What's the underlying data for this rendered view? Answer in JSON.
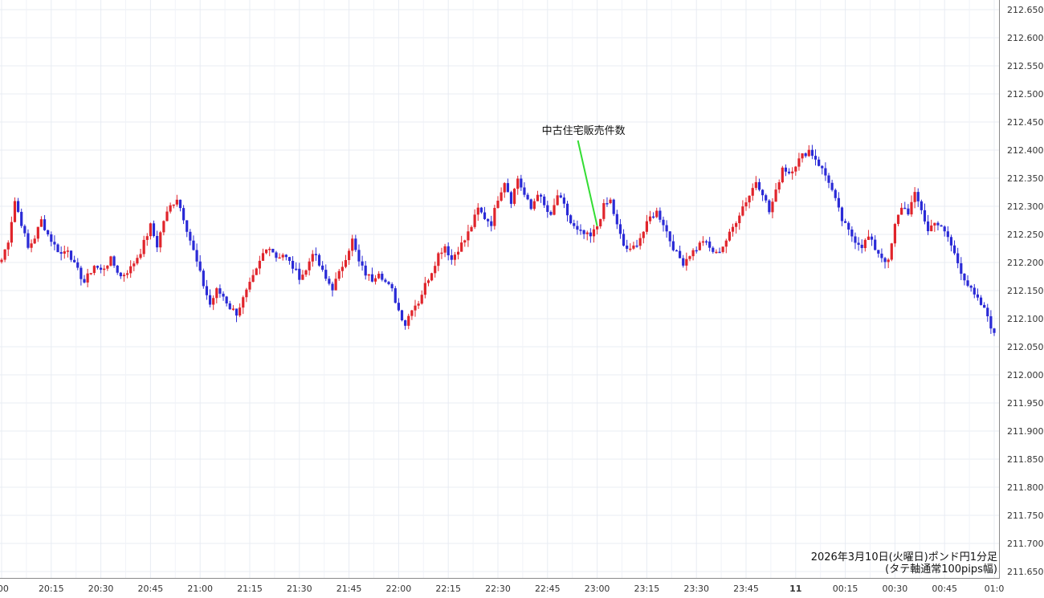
{
  "chart_data": {
    "type": "candlestick",
    "title": "2026年3月10日(火曜日)ポンド円1分足",
    "subtitle": "(タテ軸通常100pips幅)",
    "y_range": [
      211.63,
      212.67
    ],
    "y_ticks": [
      "212.650",
      "212.600",
      "212.550",
      "212.500",
      "212.450",
      "212.400",
      "212.350",
      "212.300",
      "212.250",
      "212.200",
      "212.150",
      "212.100",
      "212.050",
      "212.000",
      "211.950",
      "211.900",
      "211.850",
      "211.800",
      "211.750",
      "211.700",
      "211.650"
    ],
    "x_ticks": [
      ":00",
      "20:15",
      "20:30",
      "20:45",
      "21:00",
      "21:15",
      "21:30",
      "21:45",
      "22:00",
      "22:15",
      "22:30",
      "22:45",
      "23:00",
      "23:15",
      "23:30",
      "23:45",
      "11",
      "00:15",
      "00:30",
      "00:45",
      "01:0"
    ],
    "x_range_minutes": [
      "20:00",
      "01:01"
    ],
    "grid": true,
    "up_color": "#e0242b",
    "down_color": "#2a2ad6",
    "annotation": {
      "text": "中古住宅販売件数",
      "time": "23:00",
      "price": 212.265,
      "line_color": "#33dd33"
    },
    "close_path": [
      [
        "20:00",
        212.205
      ],
      [
        "20:02",
        212.24
      ],
      [
        "20:04",
        212.31
      ],
      [
        "20:06",
        212.27
      ],
      [
        "20:08",
        212.225
      ],
      [
        "20:10",
        212.245
      ],
      [
        "20:12",
        212.275
      ],
      [
        "20:14",
        212.25
      ],
      [
        "20:16",
        212.23
      ],
      [
        "20:18",
        212.215
      ],
      [
        "20:20",
        212.225
      ],
      [
        "20:22",
        212.195
      ],
      [
        "20:25",
        212.165
      ],
      [
        "20:28",
        212.195
      ],
      [
        "20:30",
        212.185
      ],
      [
        "20:33",
        212.205
      ],
      [
        "20:36",
        212.175
      ],
      [
        "20:39",
        212.19
      ],
      [
        "20:42",
        212.22
      ],
      [
        "20:45",
        212.265
      ],
      [
        "20:47",
        212.23
      ],
      [
        "20:49",
        212.275
      ],
      [
        "20:51",
        212.3
      ],
      [
        "20:53",
        212.315
      ],
      [
        "20:55",
        212.28
      ],
      [
        "20:57",
        212.24
      ],
      [
        "20:59",
        212.2
      ],
      [
        "21:01",
        212.16
      ],
      [
        "21:03",
        212.125
      ],
      [
        "21:05",
        212.15
      ],
      [
        "21:07",
        212.14
      ],
      [
        "21:09",
        212.12
      ],
      [
        "21:11",
        212.11
      ],
      [
        "21:13",
        212.135
      ],
      [
        "21:15",
        212.16
      ],
      [
        "21:17",
        212.185
      ],
      [
        "21:19",
        212.215
      ],
      [
        "21:21",
        212.23
      ],
      [
        "21:23",
        212.21
      ],
      [
        "21:25",
        212.215
      ],
      [
        "21:27",
        212.2
      ],
      [
        "21:30",
        212.175
      ],
      [
        "21:32",
        212.185
      ],
      [
        "21:34",
        212.22
      ],
      [
        "21:36",
        212.195
      ],
      [
        "21:38",
        212.17
      ],
      [
        "21:40",
        212.155
      ],
      [
        "21:42",
        212.18
      ],
      [
        "21:44",
        212.21
      ],
      [
        "21:46",
        212.24
      ],
      [
        "21:48",
        212.2
      ],
      [
        "21:50",
        212.18
      ],
      [
        "21:52",
        212.17
      ],
      [
        "21:54",
        212.185
      ],
      [
        "21:56",
        212.165
      ],
      [
        "21:58",
        212.15
      ],
      [
        "22:00",
        212.115
      ],
      [
        "22:02",
        212.09
      ],
      [
        "22:04",
        212.12
      ],
      [
        "22:06",
        212.13
      ],
      [
        "22:08",
        212.16
      ],
      [
        "22:10",
        212.185
      ],
      [
        "22:12",
        212.215
      ],
      [
        "22:14",
        212.23
      ],
      [
        "22:16",
        212.205
      ],
      [
        "22:18",
        212.225
      ],
      [
        "22:20",
        212.24
      ],
      [
        "22:22",
        212.265
      ],
      [
        "22:24",
        212.295
      ],
      [
        "22:26",
        212.28
      ],
      [
        "22:28",
        212.27
      ],
      [
        "22:30",
        212.315
      ],
      [
        "22:32",
        212.345
      ],
      [
        "22:34",
        212.31
      ],
      [
        "22:36",
        212.35
      ],
      [
        "22:38",
        212.32
      ],
      [
        "22:40",
        212.295
      ],
      [
        "22:42",
        212.325
      ],
      [
        "22:44",
        212.3
      ],
      [
        "22:46",
        212.28
      ],
      [
        "22:48",
        212.32
      ],
      [
        "22:50",
        212.3
      ],
      [
        "22:52",
        212.27
      ],
      [
        "22:54",
        212.255
      ],
      [
        "22:56",
        212.25
      ],
      [
        "22:58",
        212.245
      ],
      [
        "23:00",
        212.265
      ],
      [
        "23:02",
        212.3
      ],
      [
        "23:04",
        212.31
      ],
      [
        "23:06",
        212.265
      ],
      [
        "23:08",
        212.23
      ],
      [
        "23:10",
        212.22
      ],
      [
        "23:12",
        212.235
      ],
      [
        "23:14",
        212.255
      ],
      [
        "23:16",
        212.28
      ],
      [
        "23:18",
        212.29
      ],
      [
        "23:20",
        212.27
      ],
      [
        "23:22",
        212.24
      ],
      [
        "23:24",
        212.215
      ],
      [
        "23:26",
        212.2
      ],
      [
        "23:28",
        212.215
      ],
      [
        "23:30",
        212.225
      ],
      [
        "23:32",
        212.24
      ],
      [
        "23:34",
        212.225
      ],
      [
        "23:36",
        212.215
      ],
      [
        "23:38",
        212.23
      ],
      [
        "23:40",
        212.25
      ],
      [
        "23:42",
        212.275
      ],
      [
        "23:44",
        212.3
      ],
      [
        "23:46",
        212.32
      ],
      [
        "23:48",
        212.345
      ],
      [
        "23:50",
        212.325
      ],
      [
        "23:52",
        212.29
      ],
      [
        "23:54",
        212.325
      ],
      [
        "23:56",
        212.37
      ],
      [
        "23:58",
        212.36
      ],
      [
        "00:00",
        212.375
      ],
      [
        "00:02",
        212.39
      ],
      [
        "00:04",
        212.4
      ],
      [
        "00:06",
        212.385
      ],
      [
        "00:08",
        212.365
      ],
      [
        "00:10",
        212.345
      ],
      [
        "00:12",
        212.31
      ],
      [
        "00:14",
        212.275
      ],
      [
        "00:16",
        212.255
      ],
      [
        "00:18",
        212.24
      ],
      [
        "00:20",
        212.23
      ],
      [
        "00:22",
        212.245
      ],
      [
        "00:24",
        212.225
      ],
      [
        "00:26",
        212.21
      ],
      [
        "00:28",
        212.2
      ],
      [
        "00:30",
        212.265
      ],
      [
        "00:32",
        212.3
      ],
      [
        "00:34",
        212.29
      ],
      [
        "00:36",
        212.32
      ],
      [
        "00:38",
        212.295
      ],
      [
        "00:40",
        212.255
      ],
      [
        "00:42",
        212.275
      ],
      [
        "00:44",
        212.26
      ],
      [
        "00:46",
        212.245
      ],
      [
        "00:48",
        212.215
      ],
      [
        "00:50",
        212.185
      ],
      [
        "00:52",
        212.16
      ],
      [
        "00:54",
        212.14
      ],
      [
        "00:56",
        212.125
      ],
      [
        "00:58",
        212.105
      ],
      [
        "01:00",
        212.07
      ],
      [
        "01:01",
        212.055
      ]
    ]
  }
}
